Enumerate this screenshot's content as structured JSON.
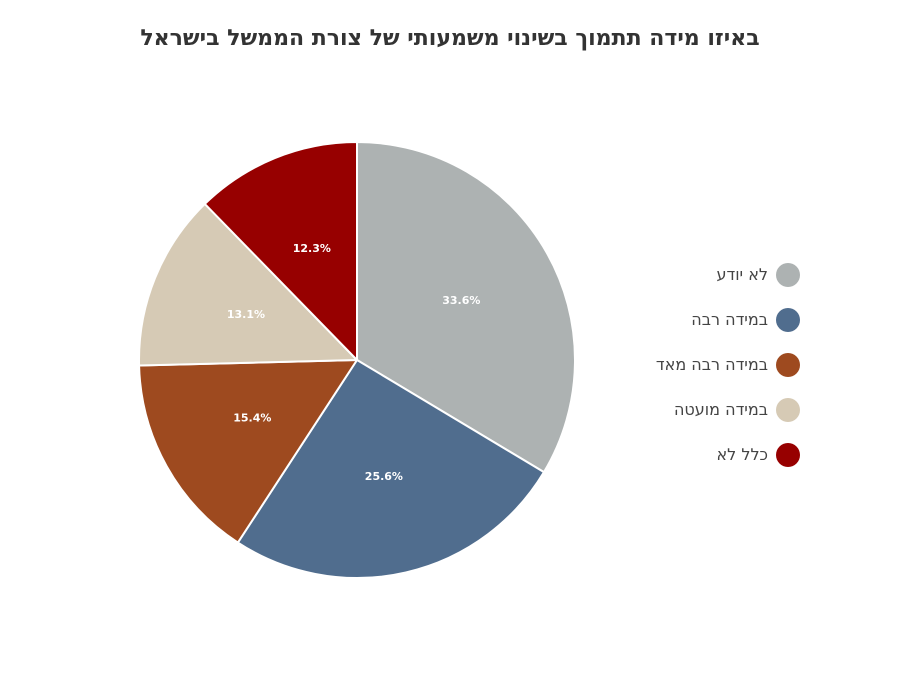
{
  "chart_data": {
    "type": "pie",
    "title": "באיזו מידה תתמוך בשינוי משמעותי של צורת הממשל בישראל",
    "slices": [
      {
        "label": "לא יודע",
        "value": 33.6,
        "display": "33.6%",
        "color": "#adb2b2"
      },
      {
        "label": "במידה רבה",
        "value": 25.6,
        "display": "25.6%",
        "color": "#506d8e"
      },
      {
        "label": "במידה רבה מאד",
        "value": 15.4,
        "display": "15.4%",
        "color": "#9e4a1f"
      },
      {
        "label": "במידה מועטה",
        "value": 13.1,
        "display": "13.1%",
        "color": "#d6cab5"
      },
      {
        "label": "כלל לא",
        "value": 12.3,
        "display": "12.3%",
        "color": "#970000"
      }
    ],
    "start_angle": "12 o'clock",
    "direction": "clockwise",
    "legend_position": "right"
  }
}
